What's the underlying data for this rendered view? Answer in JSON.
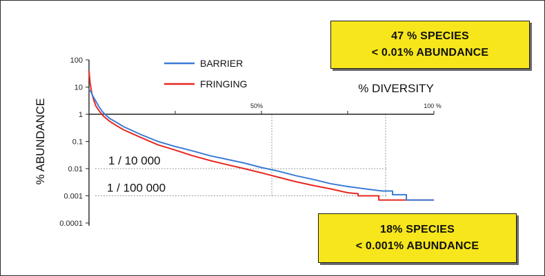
{
  "chart_data": {
    "type": "line",
    "ylabel": "% ABUNDANCE",
    "xlabel": "% DIVERSITY",
    "y_scale": "log",
    "ylim": [
      0.0001,
      100
    ],
    "xlim": [
      0,
      100
    ],
    "y_ticks": [
      "100",
      "10",
      "1",
      "0.1",
      "0.01",
      "0.001",
      "0.0001"
    ],
    "x_ticks": [
      "50%",
      "100 %"
    ],
    "legend_position": "top-center",
    "series": [
      {
        "name": "BARRIER",
        "color": "#3a7bd5",
        "x": [
          0,
          0.5,
          1,
          2,
          3,
          4,
          5,
          6,
          8,
          10,
          15,
          20,
          25,
          30,
          35,
          40,
          45,
          50,
          55,
          60,
          65,
          70,
          75,
          80,
          85,
          88,
          88,
          92,
          92,
          100
        ],
        "y": [
          8,
          7,
          5,
          3,
          1.8,
          1.2,
          0.9,
          0.7,
          0.5,
          0.35,
          0.18,
          0.1,
          0.065,
          0.045,
          0.03,
          0.022,
          0.016,
          0.011,
          0.008,
          0.0055,
          0.004,
          0.0028,
          0.0022,
          0.0018,
          0.0015,
          0.0015,
          0.0011,
          0.0011,
          0.0007,
          0.0007
        ]
      },
      {
        "name": "FRINGING",
        "color": "#e8261f",
        "x": [
          0,
          0.3,
          0.8,
          1.5,
          2,
          3,
          4,
          5,
          6,
          8,
          10,
          15,
          20,
          25,
          30,
          35,
          40,
          45,
          50,
          55,
          60,
          65,
          70,
          75,
          78,
          78,
          84,
          84,
          100
        ],
        "y": [
          40,
          15,
          6,
          3,
          2,
          1.3,
          0.9,
          0.7,
          0.55,
          0.38,
          0.27,
          0.14,
          0.075,
          0.048,
          0.03,
          0.02,
          0.014,
          0.01,
          0.007,
          0.0048,
          0.0033,
          0.0024,
          0.0018,
          0.0013,
          0.0012,
          0.001,
          0.001,
          0.0007,
          0.0007
        ]
      }
    ],
    "annotations": [
      {
        "text": "1 / 10 000",
        "level": 0.01
      },
      {
        "text": "1 / 100 000",
        "level": 0.001
      }
    ],
    "guide_lines": {
      "horizontal": [
        0.01,
        0.001
      ],
      "vertical_pct": [
        53,
        86
      ]
    }
  },
  "callouts": {
    "top": {
      "line1": "47 % SPECIES",
      "line2": "< 0.01% ABUNDANCE"
    },
    "bottom": {
      "line1": "18% SPECIES",
      "line2": "< 0.001% ABUNDANCE"
    }
  },
  "colors": {
    "callout_fill": "#f7e61b",
    "barrier": "#3a7bd5",
    "fringing": "#e8261f"
  }
}
